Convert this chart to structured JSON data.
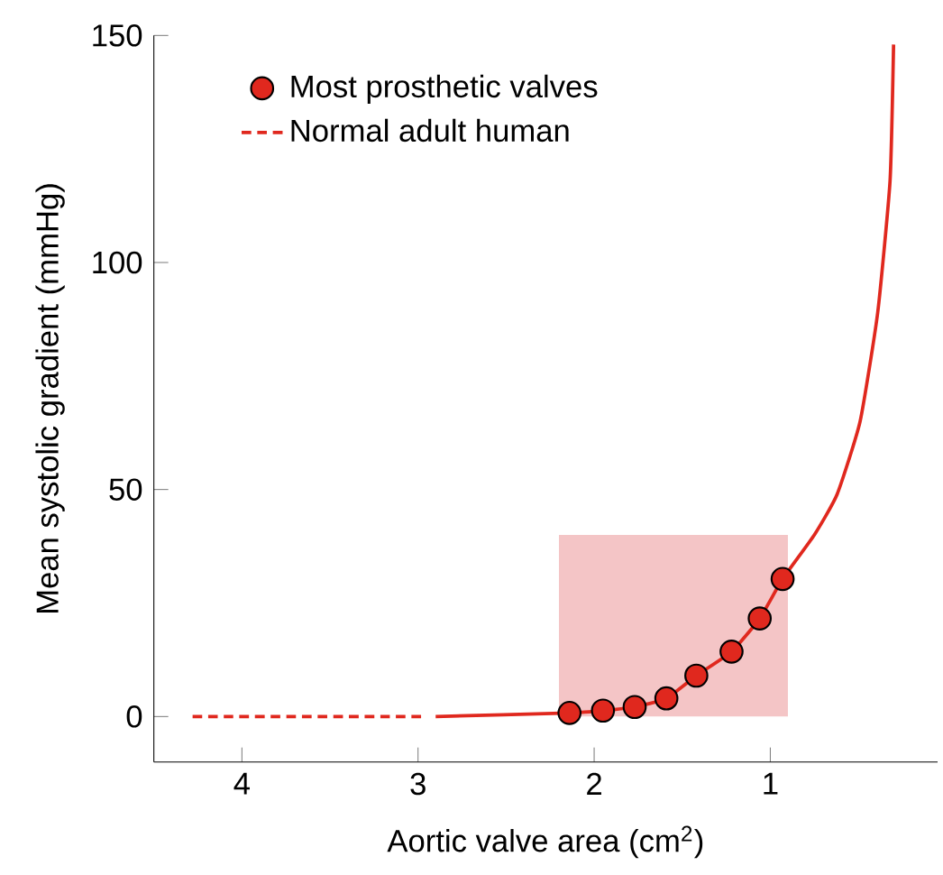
{
  "chart_data": {
    "type": "line",
    "xlabel": "Aortic valve area (cm$^{2}$)",
    "ylabel": "Mean systolic gradient (mmHg)",
    "xlim": [
      4.5,
      0.05
    ],
    "xticks": [
      4,
      3,
      2,
      1
    ],
    "ylim": [
      -10,
      150
    ],
    "yticks": [
      0,
      50,
      100,
      150
    ],
    "legend": "top left",
    "series": [
      {
        "type": "area",
        "color": "#f4c5c6",
        "x": [
          2.2,
          0.9
        ],
        "values": [
          40,
          40
        ]
      },
      {
        "type": "line",
        "name": "Normal adult human",
        "color": "#e0281e",
        "line_style": "dashed",
        "x": [
          4.28,
          2.98
        ],
        "values": [
          0,
          0
        ]
      },
      {
        "color": "#e0281e",
        "line_style": "solid",
        "x": [
          2.9,
          2.14,
          1.95,
          1.77,
          1.59,
          1.42,
          1.22,
          1.06,
          0.93,
          0.75,
          0.62,
          0.49,
          0.39,
          0.32,
          0.3
        ],
        "values": [
          0,
          0.8,
          1.3,
          2.1,
          4,
          9,
          14.3,
          21.6,
          30.3,
          40,
          49,
          65,
          89,
          118,
          148
        ]
      },
      {
        "type": "scatter",
        "name": "Most prosthetic valves",
        "color": "#e0281e",
        "marker": "circle",
        "x": [
          2.14,
          1.95,
          1.77,
          1.59,
          1.42,
          1.22,
          1.06,
          0.93
        ],
        "values": [
          0.8,
          1.3,
          2.1,
          4,
          9,
          14.3,
          21.6,
          30.3
        ]
      }
    ]
  }
}
